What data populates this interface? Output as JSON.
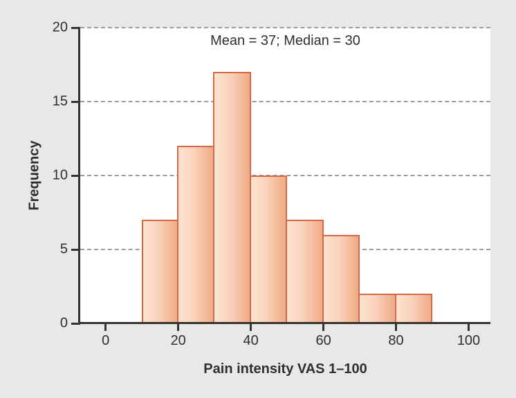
{
  "figure": {
    "background": "#e9e8e7",
    "plot_background": "#ffffff"
  },
  "chart_data": {
    "type": "bar",
    "subtype": "histogram",
    "annotation": "Mean = 37; Median = 30",
    "xlabel": "Pain intensity VAS 1–100",
    "ylabel": "Frequency",
    "xlim": [
      -7,
      106
    ],
    "ylim": [
      0,
      20
    ],
    "xticks": [
      0,
      20,
      40,
      60,
      80,
      100
    ],
    "yticks": [
      0,
      5,
      10,
      15,
      20
    ],
    "grid": "horizontal dashed lines at y = 5, 10, 15, 20",
    "legend": "none",
    "bins": [
      {
        "range": [
          10,
          20
        ],
        "count": 7
      },
      {
        "range": [
          20,
          30
        ],
        "count": 12
      },
      {
        "range": [
          30,
          40
        ],
        "count": 17
      },
      {
        "range": [
          40,
          50
        ],
        "count": 10
      },
      {
        "range": [
          50,
          60
        ],
        "count": 7
      },
      {
        "range": [
          60,
          70
        ],
        "count": 6
      },
      {
        "range": [
          70,
          80
        ],
        "count": 2
      },
      {
        "range": [
          80,
          90
        ],
        "count": 2
      }
    ],
    "colors": {
      "bar_fill_light": "#fde3d0",
      "bar_fill_mid": "#f9d2ba",
      "bar_fill_dark": "#f0ab86",
      "bar_border": "#d56946",
      "axis": "#333333",
      "grid": "#9b9b9b",
      "text": "#2e2e2e"
    }
  }
}
